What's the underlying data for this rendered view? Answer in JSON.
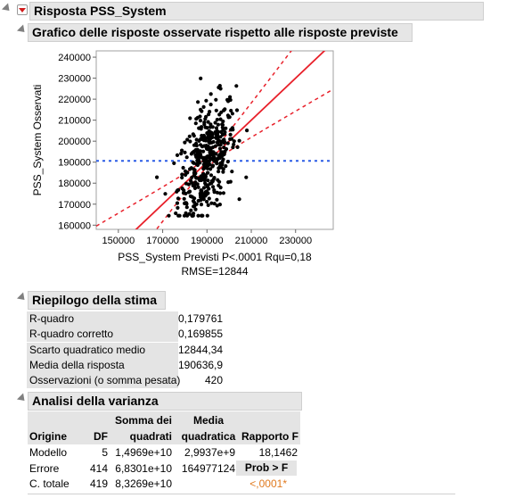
{
  "report": {
    "title": "Risposta PSS_System",
    "plot_section_title": "Grafico delle risposte osservate rispetto alle risposte previste",
    "summary_title": "Riepilogo della stima",
    "anova_title": "Analisi della varianza"
  },
  "chart_data": {
    "type": "scatter",
    "title": "",
    "xlabel": "PSS_System Previsti P<.0001 Rqu=0,18",
    "xlabel2": "RMSE=12844",
    "ylabel": "PSS_System Osservati",
    "xlim": [
      140000,
      247000
    ],
    "ylim": [
      158000,
      243000
    ],
    "x_ticks": [
      "150000",
      "170000",
      "190000",
      "210000",
      "230000"
    ],
    "x_tick_values": [
      150000,
      170000,
      190000,
      210000,
      230000
    ],
    "y_ticks": [
      "240000",
      "230000",
      "220000",
      "210000",
      "200000",
      "190000",
      "180000",
      "170000",
      "160000"
    ],
    "y_tick_values": [
      240000,
      230000,
      220000,
      210000,
      200000,
      190000,
      180000,
      170000,
      160000
    ],
    "mean_line": 190636.9,
    "fit_line": {
      "slope": 1,
      "intercept": 0,
      "color": "#e8202a"
    },
    "confidence_band_color": "#e8202a",
    "mean_line_color": "#2b5ce6",
    "point_color": "#000000",
    "n_points": 420,
    "points_summary": {
      "x_center": 190000,
      "x_spread": 6500,
      "y_center": 190637,
      "y_spread": 12844
    }
  },
  "summary": {
    "rows": [
      {
        "label": "R-quadro",
        "value": "0,179761"
      },
      {
        "label": "R-quadro corretto",
        "value": "0,169855"
      },
      {
        "label": "Scarto quadratico medio",
        "value": "12844,34"
      },
      {
        "label": "Media della risposta",
        "value": "190636,9"
      },
      {
        "label": "Osservazioni (o somma pesata)",
        "value": "420"
      }
    ]
  },
  "anova": {
    "headers": {
      "origine": "Origine",
      "df": "DF",
      "ss_line1": "Somma dei",
      "ss_line2": "quadrati",
      "ms_line1": "Media",
      "ms_line2": "quadratica",
      "f": "Rapporto F"
    },
    "rows": [
      {
        "source": "Modello",
        "df": "5",
        "ss": "1,4969e+10",
        "ms": "2,9937e+9",
        "f": "18,1462"
      },
      {
        "source": "Errore",
        "df": "414",
        "ss": "6,8301e+10",
        "ms": "164977124",
        "f": ""
      },
      {
        "source": "C. totale",
        "df": "419",
        "ss": "8,3269e+10",
        "ms": "",
        "f": ""
      }
    ],
    "prob_label": "Prob > F",
    "prob_value": "<,0001*",
    "prob_color": "#e07a1f"
  }
}
